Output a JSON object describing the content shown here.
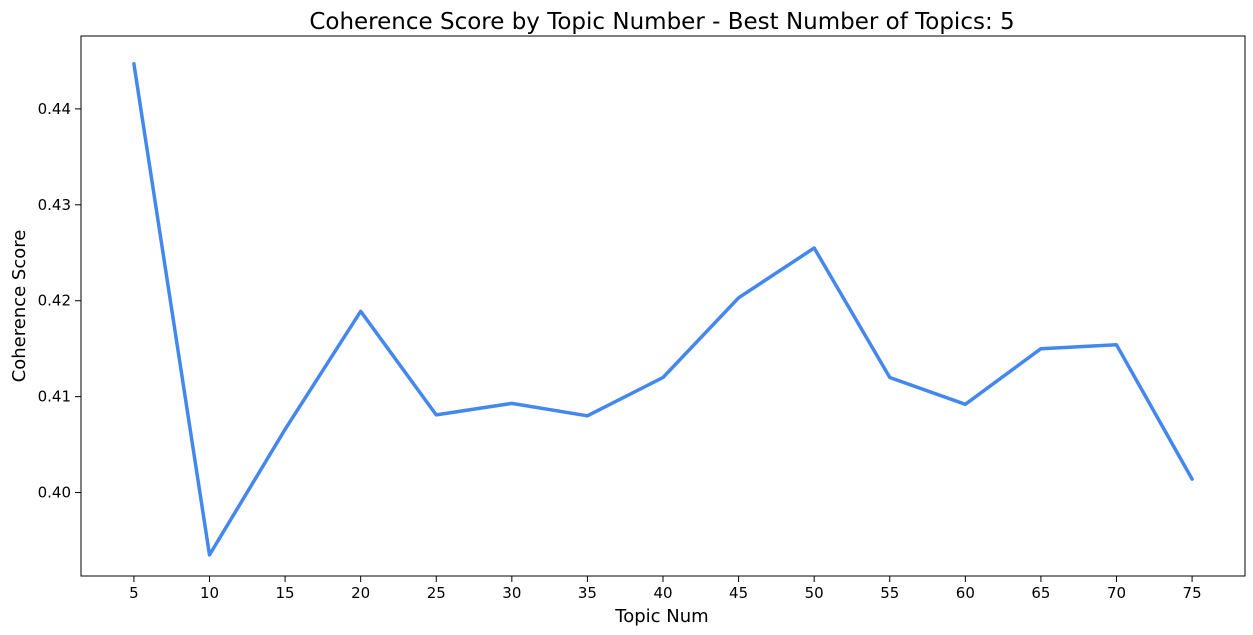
{
  "chart_data": {
    "type": "line",
    "title": "Coherence Score by Topic Number - Best Number of Topics: 5",
    "xlabel": "Topic Num",
    "ylabel": "Coherence Score",
    "x": [
      5,
      10,
      15,
      20,
      25,
      30,
      35,
      40,
      45,
      50,
      55,
      60,
      65,
      70,
      75
    ],
    "series": [
      {
        "values": [
          0.4447,
          0.3935,
          0.4066,
          0.4189,
          0.4081,
          0.4093,
          0.408,
          0.412,
          0.4203,
          0.4255,
          0.412,
          0.4092,
          0.415,
          0.4154,
          0.4014
        ],
        "color": "#4488EE"
      }
    ],
    "xticks": [
      "5",
      "10",
      "15",
      "20",
      "25",
      "30",
      "35",
      "40",
      "45",
      "50",
      "55",
      "60",
      "65",
      "70",
      "75"
    ],
    "yticks": [
      "0.40",
      "0.41",
      "0.42",
      "0.43",
      "0.44"
    ],
    "xlim": [
      1.5,
      78.5
    ],
    "ylim": [
      0.3913,
      0.4476
    ],
    "grid": false,
    "legend": "none"
  }
}
